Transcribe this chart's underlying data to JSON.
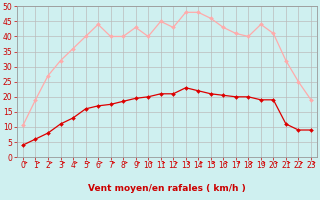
{
  "x": [
    0,
    1,
    2,
    3,
    4,
    5,
    6,
    7,
    8,
    9,
    10,
    11,
    12,
    13,
    14,
    15,
    16,
    17,
    18,
    19,
    20,
    21,
    22,
    23
  ],
  "avg_wind": [
    4,
    6,
    8,
    11,
    13,
    16,
    17,
    17.5,
    18.5,
    19.5,
    20,
    21,
    21,
    23,
    22,
    21,
    20.5,
    20,
    20,
    19,
    19,
    11,
    9,
    9
  ],
  "gust_wind": [
    10.5,
    19,
    27,
    32,
    36,
    40,
    44,
    40,
    40,
    43,
    40,
    45,
    43,
    48,
    48,
    46,
    43,
    41,
    40,
    44,
    41,
    32,
    25,
    19
  ],
  "avg_color": "#dd0000",
  "gust_color": "#ffaaaa",
  "bg_color": "#cff0f0",
  "grid_color": "#bbbbbb",
  "xlabel": "Vent moyen/en rafales ( km/h )",
  "ylim": [
    0,
    50
  ],
  "xlim": [
    -0.5,
    23.5
  ],
  "yticks": [
    0,
    5,
    10,
    15,
    20,
    25,
    30,
    35,
    40,
    45,
    50
  ],
  "xticks": [
    0,
    1,
    2,
    3,
    4,
    5,
    6,
    7,
    8,
    9,
    10,
    11,
    12,
    13,
    14,
    15,
    16,
    17,
    18,
    19,
    20,
    21,
    22,
    23
  ],
  "marker": "D",
  "markersize": 2.0,
  "linewidth": 0.9,
  "xlabel_color": "#cc0000",
  "tick_color": "#cc0000",
  "tick_fontsize": 5.5,
  "xlabel_fontsize": 6.5
}
